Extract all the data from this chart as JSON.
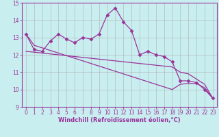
{
  "xlabel": "Windchill (Refroidissement éolien,°C)",
  "x_values": [
    0,
    1,
    2,
    3,
    4,
    5,
    6,
    7,
    8,
    9,
    10,
    11,
    12,
    13,
    14,
    15,
    16,
    17,
    18,
    19,
    20,
    21,
    22,
    23
  ],
  "y_main": [
    13.2,
    12.3,
    12.2,
    12.8,
    13.2,
    12.9,
    12.7,
    13.0,
    12.9,
    13.2,
    14.3,
    14.7,
    13.9,
    13.4,
    12.0,
    12.2,
    12.0,
    11.9,
    11.6,
    10.5,
    10.5,
    10.4,
    10.0,
    9.5
  ],
  "y_line1": [
    13.2,
    12.55,
    12.4,
    12.25,
    12.1,
    11.95,
    11.8,
    11.65,
    11.5,
    11.35,
    11.2,
    11.05,
    10.9,
    10.75,
    10.6,
    10.45,
    10.3,
    10.15,
    10.0,
    10.3,
    10.35,
    10.35,
    10.1,
    9.5
  ],
  "y_line2": [
    12.2,
    12.15,
    12.1,
    12.05,
    12.0,
    11.95,
    11.9,
    11.85,
    11.8,
    11.75,
    11.7,
    11.65,
    11.6,
    11.55,
    11.5,
    11.45,
    11.4,
    11.35,
    11.3,
    11.0,
    10.9,
    10.6,
    10.3,
    9.5
  ],
  "line_color": "#993399",
  "bg_color": "#c8eef0",
  "grid_color": "#b0b0b0",
  "ylim": [
    9,
    15
  ],
  "xlim": [
    -0.5,
    23.5
  ],
  "yticks": [
    9,
    10,
    11,
    12,
    13,
    14,
    15
  ],
  "xticks": [
    0,
    1,
    2,
    3,
    4,
    5,
    6,
    7,
    8,
    9,
    10,
    11,
    12,
    13,
    14,
    15,
    16,
    17,
    18,
    19,
    20,
    21,
    22,
    23
  ],
  "tick_fontsize": 5.5,
  "xlabel_fontsize": 6.0
}
